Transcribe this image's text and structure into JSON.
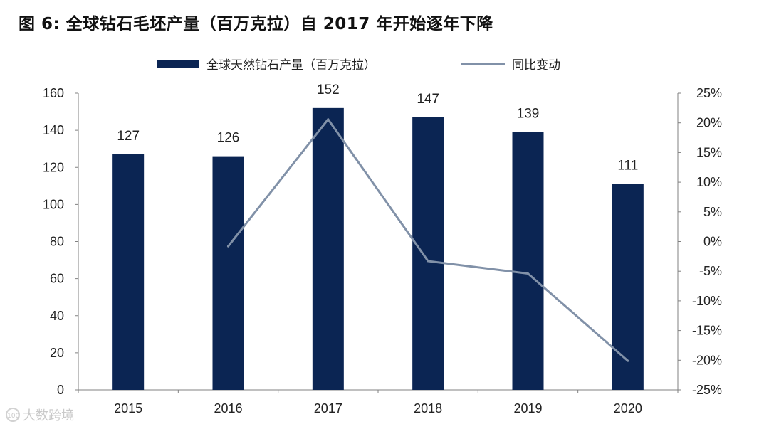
{
  "chart_data": {
    "type": "bar+line",
    "title": "图 6:  全球钻石毛坯产量（百万克拉）自 2017 年开始逐年下降",
    "categories": [
      "2015",
      "2016",
      "2017",
      "2018",
      "2019",
      "2020"
    ],
    "series": [
      {
        "name": "全球天然钻石产量（百万克拉）",
        "type": "bar",
        "axis": "left",
        "values": [
          127,
          126,
          152,
          147,
          139,
          111
        ],
        "data_labels": [
          "127",
          "126",
          "152",
          "147",
          "139",
          "111"
        ]
      },
      {
        "name": "同比变动",
        "type": "line",
        "axis": "right",
        "values": [
          null,
          -0.8,
          20.6,
          -3.3,
          -5.4,
          -20.1
        ]
      }
    ],
    "y_left": {
      "min": 0,
      "max": 160,
      "step": 20,
      "ticks": [
        "0",
        "20",
        "40",
        "60",
        "80",
        "100",
        "120",
        "140",
        "160"
      ]
    },
    "y_right": {
      "min": -25,
      "max": 25,
      "step": 5,
      "ticks": [
        "-25%",
        "-20%",
        "-15%",
        "-10%",
        "-5%",
        "0%",
        "5%",
        "10%",
        "15%",
        "20%",
        "25%"
      ]
    },
    "grid": false,
    "legend_position": "top-center",
    "colors": {
      "bar": "#0b2553",
      "line": "#8191a8",
      "axis": "#808080"
    }
  },
  "watermark": {
    "logo": "100",
    "text": "大数跨境"
  }
}
